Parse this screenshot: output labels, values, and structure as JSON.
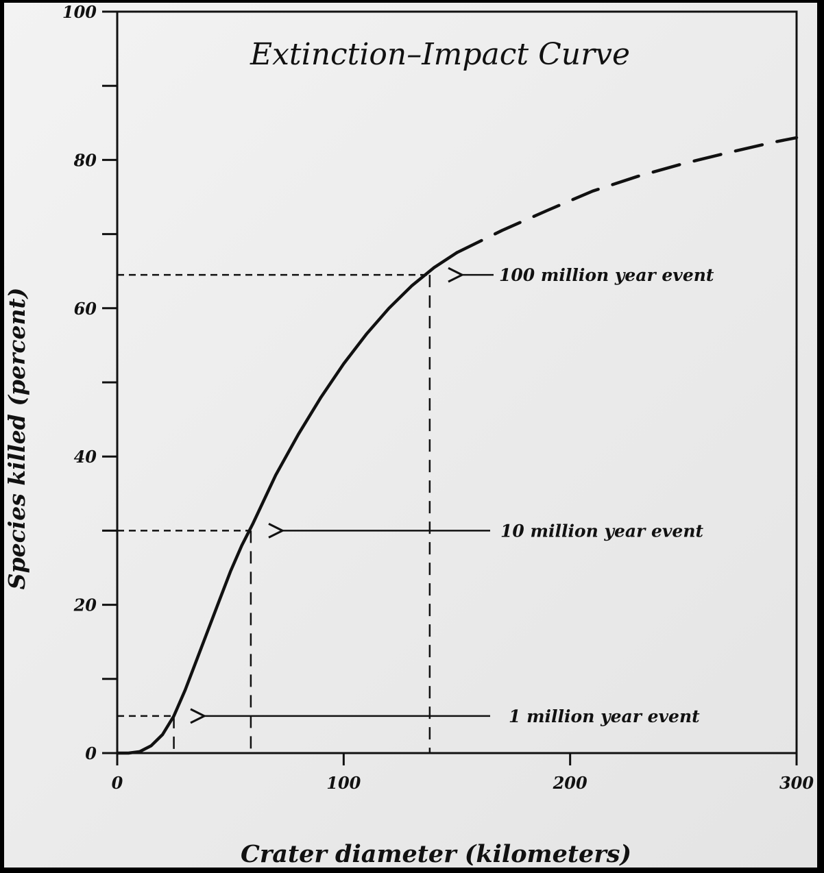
{
  "chart_data": {
    "type": "line",
    "title": "Extinction–Impact Curve",
    "xlabel": "Crater diameter (kilometers)",
    "ylabel": "Species killed (percent)",
    "xlim": [
      0,
      300
    ],
    "ylim": [
      0,
      100
    ],
    "x_ticks": [
      "0",
      "100",
      "200",
      "300"
    ],
    "y_ticks": [
      "0",
      "20",
      "40",
      "60",
      "80",
      "100"
    ],
    "grid": false,
    "series": [
      {
        "style": "solid",
        "x": [
          0,
          5,
          10,
          15,
          20,
          25,
          30,
          35,
          40,
          45,
          50,
          55,
          60,
          70,
          80,
          90,
          100,
          110,
          120,
          130,
          140,
          150
        ],
        "y": [
          0,
          0,
          0.2,
          1,
          2.5,
          5,
          8.5,
          12.5,
          16.5,
          20.5,
          24.5,
          28,
          31,
          37.5,
          43,
          48,
          52.5,
          56.5,
          60,
          63,
          65.5,
          67.5
        ]
      },
      {
        "style": "dashed",
        "x": [
          150,
          170,
          190,
          210,
          230,
          250,
          270,
          290,
          300
        ],
        "y": [
          67.5,
          70.5,
          73.2,
          75.8,
          77.8,
          79.5,
          81.0,
          82.4,
          83
        ]
      }
    ],
    "annotations": [
      {
        "label": "1 million year event",
        "crater_km": 25,
        "species_percent": 5
      },
      {
        "label": "10 million year event",
        "crater_km": 59,
        "species_percent": 30
      },
      {
        "label": "100 million year event",
        "crater_km": 138,
        "species_percent": 64.5
      }
    ]
  }
}
